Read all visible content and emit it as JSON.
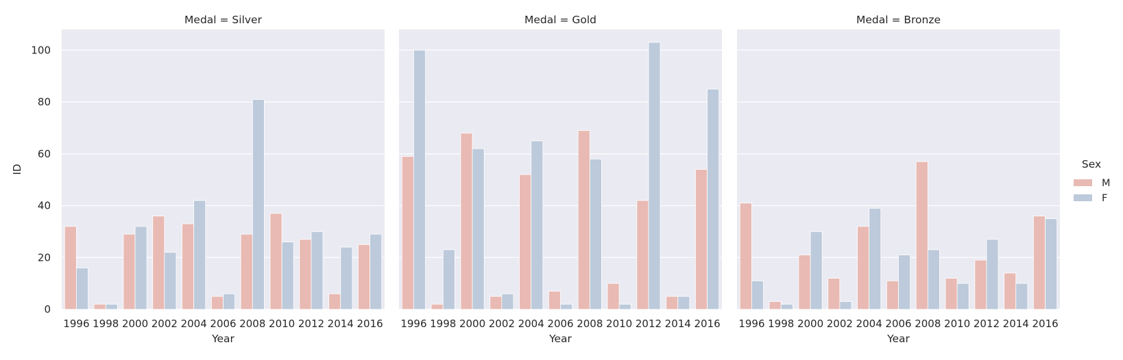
{
  "chart_data": {
    "type": "bar",
    "panels": [
      {
        "title": "Medal = Silver",
        "categories": [
          "1996",
          "1998",
          "2000",
          "2002",
          "2004",
          "2006",
          "2008",
          "2010",
          "2012",
          "2014",
          "2016"
        ],
        "series": [
          {
            "name": "M",
            "values": [
              32,
              2,
              29,
              36,
              33,
              5,
              29,
              37,
              27,
              6,
              25
            ]
          },
          {
            "name": "F",
            "values": [
              16,
              2,
              32,
              22,
              42,
              6,
              81,
              26,
              30,
              24,
              29
            ]
          }
        ]
      },
      {
        "title": "Medal = Gold",
        "categories": [
          "1996",
          "1998",
          "2000",
          "2002",
          "2004",
          "2006",
          "2008",
          "2010",
          "2012",
          "2014",
          "2016"
        ],
        "series": [
          {
            "name": "M",
            "values": [
              59,
              2,
              68,
              5,
              52,
              7,
              69,
              10,
              42,
              5,
              54
            ]
          },
          {
            "name": "F",
            "values": [
              100,
              23,
              62,
              6,
              65,
              2,
              58,
              2,
              103,
              5,
              85
            ]
          }
        ]
      },
      {
        "title": "Medal = Bronze",
        "categories": [
          "1996",
          "1998",
          "2000",
          "2002",
          "2004",
          "2006",
          "2008",
          "2010",
          "2012",
          "2014",
          "2016"
        ],
        "series": [
          {
            "name": "M",
            "values": [
              41,
              3,
              21,
              12,
              32,
              11,
              57,
              12,
              19,
              14,
              36
            ]
          },
          {
            "name": "F",
            "values": [
              11,
              2,
              30,
              3,
              39,
              21,
              23,
              10,
              27,
              10,
              35
            ]
          }
        ]
      }
    ],
    "xlabel": "Year",
    "ylabel": "ID",
    "ylim": [
      0,
      108
    ],
    "yticks": [
      0,
      20,
      40,
      60,
      80,
      100
    ],
    "grid": true,
    "legend": {
      "title": "Sex",
      "entries": [
        "M",
        "F"
      ],
      "placement": "right"
    },
    "colors": {
      "M": "#e8bab3",
      "F": "#bccadb",
      "background": "#eaeaf2",
      "grid": "#ffffff"
    }
  }
}
